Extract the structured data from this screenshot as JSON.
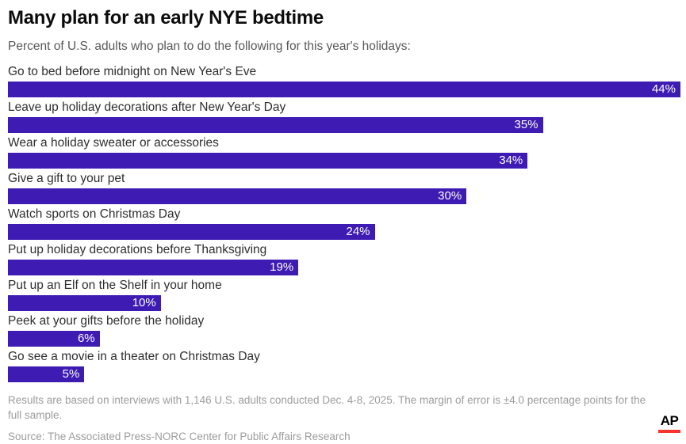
{
  "header": {
    "title": "Many plan for an early NYE bedtime",
    "subtitle": "Percent of U.S. adults who plan to do the following for this year's holidays:"
  },
  "chart_data": {
    "type": "bar",
    "orientation": "horizontal",
    "title": "Many plan for an early NYE bedtime",
    "subtitle": "Percent of U.S. adults who plan to do the following for this year's holidays:",
    "categories": [
      "Go to bed before midnight on New Year's Eve",
      "Leave up holiday decorations after New Year's Day",
      "Wear a holiday sweater or accessories",
      "Give a gift to your pet",
      "Watch sports on Christmas Day",
      "Put up holiday decorations before Thanksgiving",
      "Put up an Elf on the Shelf in your home",
      "Peek at your gifts before the holiday",
      "Go see a movie in a theater on Christmas Day"
    ],
    "values": [
      44,
      35,
      34,
      30,
      24,
      19,
      10,
      6,
      5
    ],
    "value_labels": [
      "44%",
      "35%",
      "34%",
      "30%",
      "24%",
      "19%",
      "10%",
      "6%",
      "5%"
    ],
    "xlim": [
      0,
      44
    ],
    "grid": false,
    "legend": false,
    "value_label_position": "inside-end",
    "bar_color": "#3E1BB3"
  },
  "footer": {
    "note": "Results are based on interviews with 1,146 U.S. adults conducted Dec. 4-8, 2025. The margin of error is ±4.0 percentage points for the full sample.",
    "source": "Source: The Associated Press-NORC Center for Public Affairs Research",
    "logo_text": "AP"
  },
  "colors": {
    "bar": "#3E1BB3",
    "title": "#0c0c0c",
    "subtitle": "#58585a",
    "category_label": "#2e2e31",
    "value_label": "#ffffff",
    "footnote": "#9c9c9c",
    "ap_red": "#f8352c",
    "background": "#ffffff"
  }
}
